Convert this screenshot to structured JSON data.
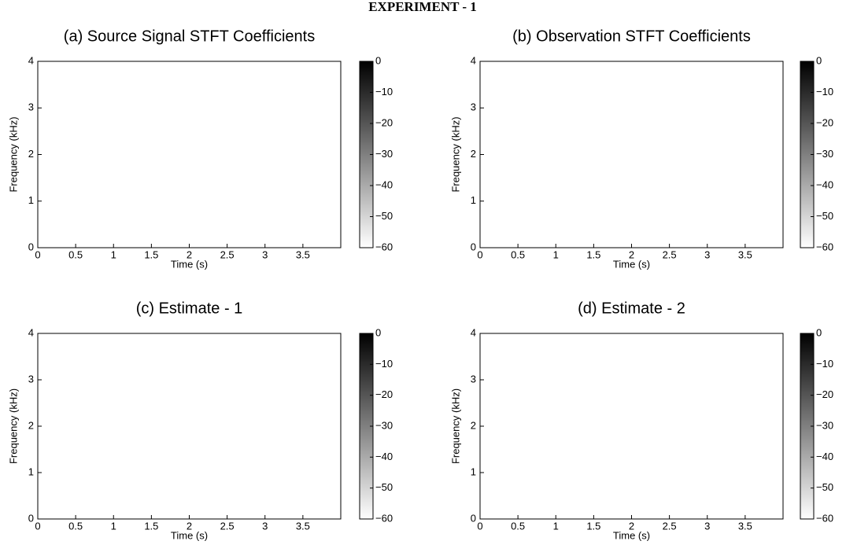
{
  "title": "EXPERIMENT - 1",
  "chart_data": [
    {
      "type": "spectrogram",
      "title": "(a) Source Signal STFT Coefficients",
      "x_label": "Time (s)",
      "y_label": "Frequency (kHz)",
      "xlim": [
        0,
        4
      ],
      "xticks": [
        0,
        0.5,
        1,
        1.5,
        2,
        2.5,
        3,
        3.5
      ],
      "ylim": [
        0,
        4
      ],
      "yticks": [
        0,
        1,
        2,
        3,
        4
      ],
      "clim": [
        -60,
        0
      ],
      "colormap": "gray",
      "cticks": [
        0,
        {
          "value": -10,
          "label": "−10"
        },
        {
          "value": -20,
          "label": "−20"
        },
        {
          "value": -30,
          "label": "−30"
        },
        {
          "value": -40,
          "label": "−40"
        },
        {
          "value": -50,
          "label": "−50"
        },
        {
          "value": -60,
          "label": "−60"
        }
      ]
    },
    {
      "type": "spectrogram",
      "title": "(b) Observation STFT Coefficients",
      "x_label": "Time (s)",
      "y_label": "Frequency (kHz)",
      "xlim": [
        0,
        4
      ],
      "xticks": [
        0,
        0.5,
        1,
        1.5,
        2,
        2.5,
        3,
        3.5
      ],
      "ylim": [
        0,
        4
      ],
      "yticks": [
        0,
        1,
        2,
        3,
        4
      ],
      "clim": [
        -60,
        0
      ],
      "colormap": "gray",
      "cticks": [
        0,
        {
          "value": -10,
          "label": "−10"
        },
        {
          "value": -20,
          "label": "−20"
        },
        {
          "value": -30,
          "label": "−30"
        },
        {
          "value": -40,
          "label": "−40"
        },
        {
          "value": -50,
          "label": "−50"
        },
        {
          "value": -60,
          "label": "−60"
        }
      ]
    },
    {
      "type": "spectrogram",
      "title": "(c) Estimate - 1",
      "x_label": "Time (s)",
      "y_label": "Frequency (kHz)",
      "xlim": [
        0,
        4
      ],
      "xticks": [
        0,
        0.5,
        1,
        1.5,
        2,
        2.5,
        3,
        3.5
      ],
      "ylim": [
        0,
        4
      ],
      "yticks": [
        0,
        1,
        2,
        3,
        4
      ],
      "clim": [
        -60,
        0
      ],
      "colormap": "gray",
      "cticks": [
        0,
        {
          "value": -10,
          "label": "−10"
        },
        {
          "value": -20,
          "label": "−20"
        },
        {
          "value": -30,
          "label": "−30"
        },
        {
          "value": -40,
          "label": "−40"
        },
        {
          "value": -50,
          "label": "−50"
        },
        {
          "value": -60,
          "label": "−60"
        }
      ]
    },
    {
      "type": "spectrogram",
      "title": "(d) Estimate - 2",
      "x_label": "Time (s)",
      "y_label": "Frequency (kHz)",
      "xlim": [
        0,
        4
      ],
      "xticks": [
        0,
        0.5,
        1,
        1.5,
        2,
        2.5,
        3,
        3.5
      ],
      "ylim": [
        0,
        4
      ],
      "yticks": [
        0,
        1,
        2,
        3,
        4
      ],
      "clim": [
        -60,
        0
      ],
      "colormap": "gray",
      "cticks": [
        0,
        {
          "value": -10,
          "label": "−10"
        },
        {
          "value": -20,
          "label": "−20"
        },
        {
          "value": -30,
          "label": "−30"
        },
        {
          "value": -40,
          "label": "−40"
        },
        {
          "value": -50,
          "label": "−50"
        },
        {
          "value": -60,
          "label": "−60"
        }
      ]
    }
  ]
}
